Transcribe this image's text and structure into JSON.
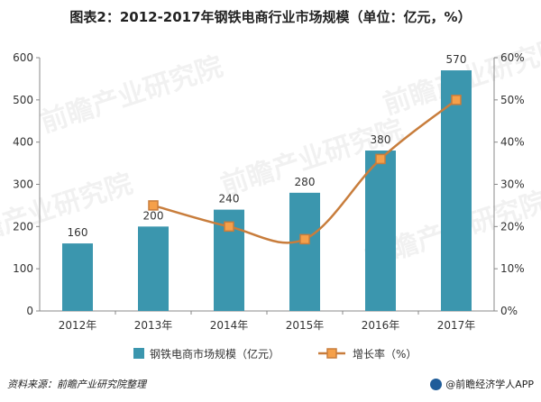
{
  "title": "图表2：2012-2017年钢铁电商行业市场规模（单位：亿元，%）",
  "chart_data": {
    "type": "bar",
    "categories": [
      "2012年",
      "2013年",
      "2014年",
      "2015年",
      "2016年",
      "2017年"
    ],
    "series": [
      {
        "name": "钢铁电商市场规模（亿元）",
        "type": "bar",
        "axis": "left",
        "values": [
          160,
          200,
          240,
          280,
          380,
          570
        ],
        "data_labels": [
          "160",
          "200",
          "240",
          "280",
          "380",
          "570"
        ]
      },
      {
        "name": "增长率（%）",
        "type": "line",
        "axis": "right",
        "values": [
          null,
          25,
          20,
          17,
          36,
          50
        ]
      }
    ],
    "y_left": {
      "min": 0,
      "max": 600,
      "ticks": [
        "0",
        "100",
        "200",
        "300",
        "400",
        "500",
        "600"
      ]
    },
    "y_right": {
      "min": 0,
      "max": 60,
      "ticks": [
        "0%",
        "10%",
        "20%",
        "30%",
        "40%",
        "50%",
        "60%"
      ]
    },
    "legend_position": "bottom",
    "grid": false,
    "colors": {
      "bar": "#3b96ae",
      "line": "#c87d3c",
      "marker_fill": "#f5a04a",
      "axis": "#888888"
    }
  },
  "footer": {
    "source": "资料来源：前瞻产业研究院整理",
    "brand": "@前瞻经济学人APP"
  },
  "watermark": "前瞻产业研究院"
}
